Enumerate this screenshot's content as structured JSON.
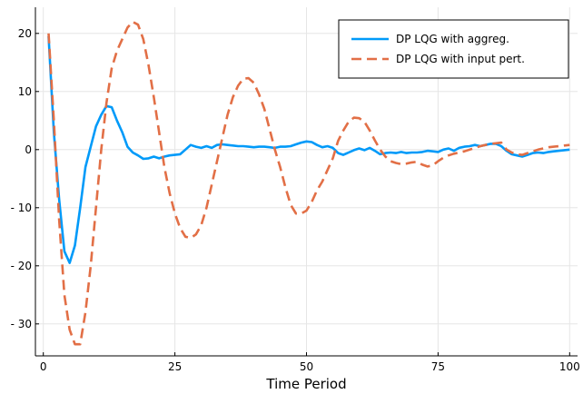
{
  "chart_data": {
    "type": "line",
    "title": "",
    "xlabel": "Time Period",
    "ylabel": "",
    "xlim": [
      -1.5,
      101.5
    ],
    "ylim": [
      -35.5,
      24.5
    ],
    "xticks": [
      0,
      25,
      50,
      75,
      100
    ],
    "xtick_labels": [
      "0",
      "25",
      "50",
      "75",
      "100"
    ],
    "yticks": [
      20,
      10,
      0,
      -10,
      -20,
      -30
    ],
    "ytick_labels": [
      "20",
      "10",
      "0",
      "- 10",
      "- 20",
      "- 30"
    ],
    "grid": true,
    "legend_position": "top-right",
    "series": [
      {
        "name": "DP LQG with aggreg.",
        "color": "#009af9",
        "style": "solid",
        "x": [
          1,
          2,
          3,
          4,
          5,
          6,
          7,
          8,
          9,
          10,
          11,
          12,
          13,
          14,
          15,
          16,
          17,
          18,
          19,
          20,
          21,
          22,
          23,
          24,
          25,
          26,
          27,
          28,
          29,
          30,
          31,
          32,
          33,
          34,
          35,
          36,
          37,
          38,
          39,
          40,
          41,
          42,
          43,
          44,
          45,
          46,
          47,
          48,
          49,
          50,
          51,
          52,
          53,
          54,
          55,
          56,
          57,
          58,
          59,
          60,
          61,
          62,
          63,
          64,
          65,
          66,
          67,
          68,
          69,
          70,
          71,
          72,
          73,
          74,
          75,
          76,
          77,
          78,
          79,
          80,
          81,
          82,
          83,
          84,
          85,
          86,
          87,
          88,
          89,
          90,
          91,
          92,
          93,
          94,
          95,
          96,
          97,
          98,
          99,
          100
        ],
        "values": [
          19.5,
          3,
          -8.5,
          -17.5,
          -19.5,
          -16.5,
          -10,
          -3,
          0.5,
          4,
          6,
          7.5,
          7.3,
          5,
          3,
          0.5,
          -0.5,
          -1,
          -1.6,
          -1.5,
          -1.2,
          -1.5,
          -1.2,
          -1,
          -0.9,
          -0.8,
          0,
          0.8,
          0.5,
          0.3,
          0.6,
          0.3,
          0.8,
          0.9,
          0.8,
          0.7,
          0.6,
          0.6,
          0.5,
          0.4,
          0.5,
          0.5,
          0.4,
          0.3,
          0.5,
          0.5,
          0.6,
          0.9,
          1.2,
          1.4,
          1.3,
          0.8,
          0.4,
          0.6,
          0.3,
          -0.6,
          -0.9,
          -0.5,
          -0.1,
          0.2,
          -0.1,
          0.3,
          -0.2,
          -0.8,
          -0.6,
          -0.5,
          -0.6,
          -0.4,
          -0.6,
          -0.5,
          -0.5,
          -0.4,
          -0.2,
          -0.3,
          -0.4,
          0,
          0.2,
          -0.2,
          0.3,
          0.5,
          0.6,
          0.8,
          0.6,
          0.8,
          1,
          1,
          0.6,
          -0.2,
          -0.8,
          -1,
          -1.2,
          -0.9,
          -0.6,
          -0.5,
          -0.6,
          -0.4,
          -0.3,
          -0.2,
          -0.1,
          0
        ]
      },
      {
        "name": "DP LQG with input pert.",
        "color": "#e26f46",
        "style": "dashed",
        "x": [
          1,
          2,
          3,
          4,
          5,
          6,
          7,
          8,
          9,
          10,
          11,
          12,
          13,
          14,
          15,
          16,
          17,
          18,
          19,
          20,
          21,
          22,
          23,
          24,
          25,
          26,
          27,
          28,
          29,
          30,
          31,
          32,
          33,
          34,
          35,
          36,
          37,
          38,
          39,
          40,
          41,
          42,
          43,
          44,
          45,
          46,
          47,
          48,
          49,
          50,
          51,
          52,
          53,
          54,
          55,
          56,
          57,
          58,
          59,
          60,
          61,
          62,
          63,
          64,
          65,
          66,
          67,
          68,
          69,
          70,
          71,
          72,
          73,
          74,
          75,
          76,
          77,
          78,
          79,
          80,
          81,
          82,
          83,
          84,
          85,
          86,
          87,
          88,
          89,
          90,
          91,
          92,
          93,
          94,
          95,
          96,
          97,
          98,
          99,
          100
        ],
        "values": [
          20,
          5,
          -12,
          -25,
          -31,
          -33.5,
          -33.5,
          -28,
          -20,
          -10,
          0,
          8,
          14,
          17,
          19,
          21,
          22,
          21.5,
          19,
          14.5,
          9,
          3,
          -3,
          -7.5,
          -11,
          -13.5,
          -15,
          -15.2,
          -14.6,
          -13,
          -10,
          -6,
          -2,
          2,
          6,
          9,
          11,
          12.2,
          12.3,
          11.5,
          9.5,
          7,
          3.5,
          0,
          -3,
          -6.5,
          -9.5,
          -11,
          -11,
          -10.5,
          -9,
          -7,
          -5.5,
          -3.5,
          -1.5,
          1.5,
          3.3,
          4.8,
          5.5,
          5.4,
          4.8,
          3.3,
          1.6,
          0,
          -1.2,
          -2,
          -2.3,
          -2.5,
          -2.4,
          -2.2,
          -2.1,
          -2.6,
          -2.9,
          -2.7,
          -2,
          -1.4,
          -1,
          -0.7,
          -0.5,
          -0.3,
          0,
          0.3,
          0.6,
          0.8,
          1,
          1.1,
          1.2,
          0,
          -0.5,
          -0.8,
          -0.9,
          -0.6,
          -0.3,
          0,
          0.2,
          0.4,
          0.5,
          0.6,
          0.7,
          0.8
        ]
      }
    ]
  }
}
